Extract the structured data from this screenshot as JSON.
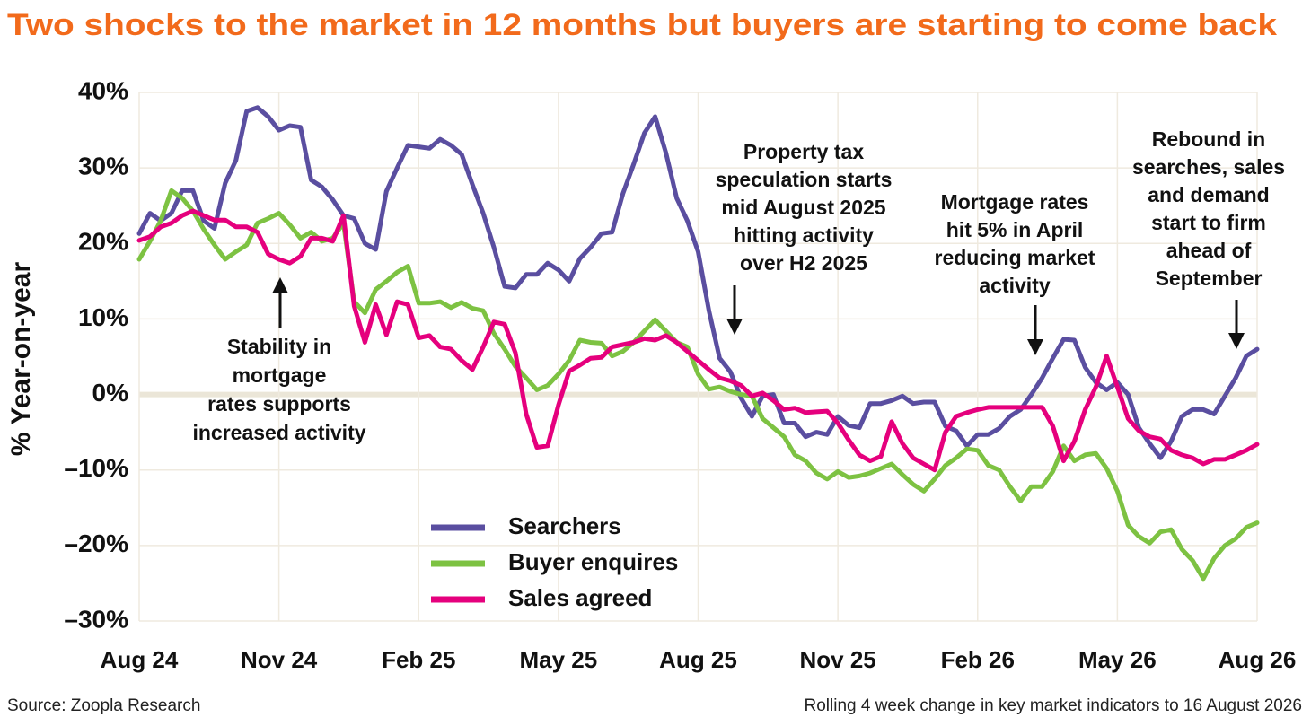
{
  "chart_data": {
    "type": "line",
    "title": "Two shocks to the market in 12 months but buyers are starting to come back",
    "y_label": "% Year-on-year",
    "source": "Source: Zoopla Research",
    "note": "Rolling 4 week change in key market indicators to 16 August 2026",
    "categories": [
      "Aug 24",
      null,
      null,
      null,
      null,
      null,
      null,
      null,
      null,
      null,
      null,
      null,
      null,
      "Nov 24",
      null,
      null,
      null,
      null,
      null,
      null,
      null,
      null,
      null,
      null,
      null,
      null,
      "Feb 25",
      null,
      null,
      null,
      null,
      null,
      null,
      null,
      null,
      null,
      null,
      null,
      null,
      "May 25",
      null,
      null,
      null,
      null,
      null,
      null,
      null,
      null,
      null,
      null,
      null,
      null,
      "Aug 25",
      null,
      null,
      null,
      null,
      null,
      null,
      null,
      null,
      null,
      null,
      null,
      null,
      "Nov 25",
      null,
      null,
      null,
      null,
      null,
      null,
      null,
      null,
      null,
      null,
      null,
      null,
      "Feb 26",
      null,
      null,
      null,
      null,
      null,
      null,
      null,
      null,
      null,
      null,
      null,
      null,
      "May 26",
      null,
      null,
      null,
      null,
      null,
      null,
      null,
      null,
      null,
      null,
      null,
      null,
      "Aug 26"
    ],
    "series": [
      {
        "name": "Searchers",
        "color": "#5a4ea0",
        "values": [
          21.3,
          24,
          23,
          24,
          27,
          27,
          23,
          22,
          28,
          31,
          37.5,
          38,
          36.8,
          35,
          35.6,
          35.4,
          28.4,
          27.5,
          25.8,
          23.7,
          23.3,
          20,
          19.2,
          26.9,
          30,
          33,
          32.8,
          32.6,
          33.8,
          33,
          31.8,
          27.8,
          24,
          19.5,
          14.3,
          14.1,
          15.9,
          15.9,
          17.4,
          16.5,
          15,
          18,
          19.5,
          21.3,
          21.5,
          26.6,
          30.5,
          34.6,
          36.8,
          32,
          26,
          23,
          18.9,
          11.1,
          4.8,
          3,
          -0.5,
          -2.9,
          -0.2,
          0,
          -3.8,
          -3.8,
          -5.6,
          -5,
          -5.3,
          -2.9,
          -4.1,
          -4.4,
          -1.2,
          -1.2,
          -0.8,
          -0.2,
          -1.2,
          -1,
          -1,
          -4.2,
          -4.8,
          -6.8,
          -5.3,
          -5.3,
          -4.5,
          -2.9,
          -2,
          0,
          2.2,
          4.8,
          7.3,
          7.2,
          3.6,
          1.6,
          0.6,
          1.6,
          0,
          -4.4,
          -6.5,
          -8.4,
          -6.2,
          -2.9,
          -2,
          -2,
          -2.6,
          -0.2,
          2.2,
          5.1,
          6
        ]
      },
      {
        "name": "Buyer enquires",
        "color": "#7dc242",
        "values": [
          17.9,
          20.3,
          23,
          27,
          26,
          24.3,
          21.9,
          19.8,
          17.9,
          18.9,
          19.8,
          22.7,
          23.3,
          24,
          22.5,
          20.7,
          21.5,
          20.3,
          20.7,
          22.7,
          12.3,
          10.8,
          13.9,
          15,
          16.2,
          17,
          12.1,
          12.1,
          12.3,
          11.5,
          12.2,
          11.4,
          11.1,
          8.1,
          6,
          3.7,
          2.2,
          0.6,
          1.2,
          2.7,
          4.5,
          7.2,
          6.9,
          6.8,
          5.1,
          5.7,
          6.9,
          8.4,
          9.9,
          8.4,
          6.9,
          6.3,
          2.7,
          0.7,
          1,
          0.4,
          0,
          -0.2,
          -3.2,
          -4.4,
          -5.6,
          -8,
          -8.8,
          -10.4,
          -11.2,
          -10.2,
          -11,
          -10.8,
          -10.4,
          -9.8,
          -9.2,
          -10.6,
          -11.9,
          -12.8,
          -11.2,
          -9.4,
          -8.4,
          -7.2,
          -7.4,
          -9.4,
          -10,
          -12.2,
          -14.1,
          -12.2,
          -12.2,
          -10.2,
          -6.8,
          -8.8,
          -8,
          -7.8,
          -9.8,
          -12.8,
          -17.3,
          -18.8,
          -19.7,
          -18.2,
          -17.9,
          -20.5,
          -22,
          -24.4,
          -21.7,
          -20,
          -19.1,
          -17.6,
          -17
        ]
      },
      {
        "name": "Sales agreed",
        "color": "#e5007d",
        "values": [
          20.4,
          20.9,
          22.2,
          22.7,
          23.7,
          24.3,
          23.7,
          23.1,
          23.1,
          22.2,
          22.2,
          21.5,
          18.6,
          17.9,
          17.4,
          18.3,
          20.7,
          20.7,
          20.3,
          23.7,
          11.7,
          6.9,
          11.9,
          7.9,
          12.3,
          11.9,
          7.5,
          7.8,
          6.3,
          6,
          4.5,
          3.3,
          6.3,
          9.6,
          9.3,
          5.5,
          -2.6,
          -7,
          -6.8,
          -1.4,
          3.1,
          3.9,
          4.8,
          4.9,
          6.3,
          6.6,
          6.9,
          7.4,
          7.2,
          7.8,
          6.9,
          5.7,
          4.5,
          3.3,
          2.2,
          1.8,
          1.2,
          -0.2,
          0.2,
          -0.8,
          -2,
          -1.8,
          -2.4,
          -2.3,
          -2.2,
          -3.8,
          -6,
          -8,
          -8.8,
          -8.2,
          -3.6,
          -6.5,
          -8.4,
          -9.2,
          -10,
          -5,
          -2.9,
          -2.4,
          -2,
          -1.7,
          -1.7,
          -1.7,
          -1.7,
          -1.7,
          -1.7,
          -4.2,
          -8.8,
          -6.2,
          -2,
          1,
          5.1,
          1,
          -3.2,
          -4.8,
          -5.6,
          -5.9,
          -7.4,
          -8,
          -8.4,
          -9.2,
          -8.6,
          -8.6,
          -8,
          -7.4,
          -6.6
        ]
      }
    ],
    "ylim": [
      -30,
      40
    ],
    "yticks": [
      {
        "value": 40,
        "label": "40%"
      },
      {
        "value": 30,
        "label": "30%"
      },
      {
        "value": 20,
        "label": "20%"
      },
      {
        "value": 10,
        "label": "10%"
      },
      {
        "value": 0,
        "label": "0%"
      },
      {
        "value": -10,
        "label": "–10%"
      },
      {
        "value": -20,
        "label": "–20%"
      },
      {
        "value": -30,
        "label": "–30%"
      }
    ],
    "grid": true,
    "annotations": [
      [
        "Stability in",
        "mortgage",
        "rates supports",
        "increased activity"
      ],
      [
        "Property tax",
        "speculation starts",
        "mid August 2025",
        "hitting activity",
        "over H2 2025"
      ],
      [
        "Mortgage rates",
        "hit 5% in April",
        "reducing market",
        "activity"
      ],
      [
        "Rebound in",
        "searches, sales",
        "and demand",
        "start to firm",
        "ahead of",
        "September"
      ]
    ]
  }
}
